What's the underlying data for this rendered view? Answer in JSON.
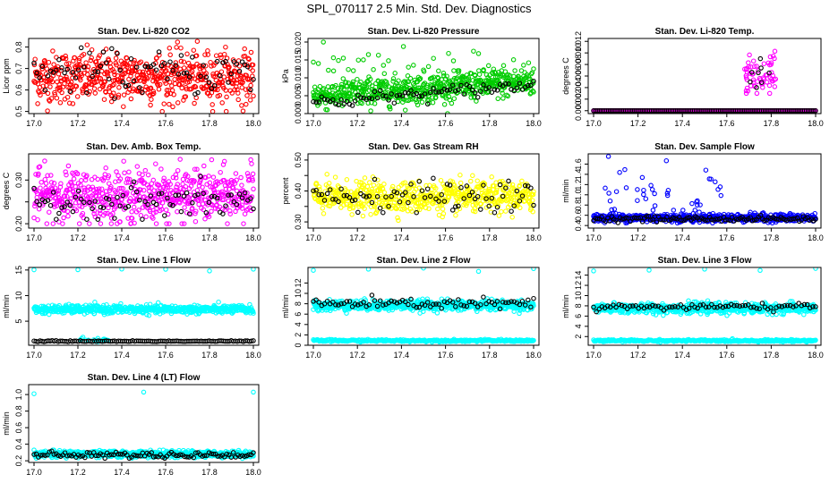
{
  "page": {
    "title": "SPL_070117  2.5 Min. Std. Dev. Diagnostics"
  },
  "chart_data": [
    {
      "type": "scatter",
      "title": "Stan. Dev. Li-820 CO2",
      "ylabel": "Licor ppm",
      "xlabel": "",
      "xlim": [
        17.0,
        18.0
      ],
      "ylim": [
        0.49,
        0.84
      ],
      "yticks": [
        0.5,
        0.6,
        0.7,
        0.8
      ],
      "xticks": [
        "17.0",
        "17.2",
        "17.4",
        "17.6",
        "17.8",
        "18.0"
      ],
      "series": [
        {
          "color": "#ff0000",
          "count": 600,
          "band": [
            0.5,
            0.84
          ],
          "center": 0.66,
          "spread": 0.06
        },
        {
          "color": "#000000",
          "count": 80,
          "band": [
            0.56,
            0.8
          ],
          "center": 0.68,
          "spread": 0.05
        }
      ]
    },
    {
      "type": "scatter",
      "title": "Stan. Dev. Li-820 Pressure",
      "ylabel": "kPa",
      "xlabel": "",
      "xlim": [
        17.0,
        18.0
      ],
      "ylim": [
        0.0,
        0.021
      ],
      "yticks": [
        0.0,
        0.005,
        0.01,
        0.015,
        0.02
      ],
      "ytick_labels": [
        "0.000",
        "0.005",
        "0.010",
        "0.015",
        "0.020"
      ],
      "xticks": [
        "17.0",
        "17.2",
        "17.4",
        "17.6",
        "17.8",
        "18.0"
      ],
      "series": [
        {
          "color": "#00cc00",
          "count": 600,
          "band": [
            0.0,
            0.012
          ],
          "center": 0.005,
          "spread": 0.002,
          "drift": 0.004
        },
        {
          "color": "#00cc00",
          "count": 45,
          "band": [
            0.009,
            0.02
          ],
          "center": 0.014,
          "spread": 0.003
        },
        {
          "color": "#000000",
          "count": 80,
          "band": [
            0.0,
            0.01
          ],
          "center": 0.003,
          "spread": 0.001,
          "drift": 0.005
        }
      ]
    },
    {
      "type": "scatter",
      "title": "Stan. Dev. Li-820 Temp.",
      "ylabel": "degrees C",
      "xlabel": "",
      "xlim": [
        17.0,
        18.0
      ],
      "ylim": [
        -0.0005,
        0.0125
      ],
      "yticks": [
        0.0,
        0.002,
        0.004,
        0.006,
        0.008,
        0.01,
        0.012
      ],
      "ytick_labels": [
        "0.000",
        "0.002",
        "0.004",
        "0.006",
        "0.008",
        "0.010",
        "0.012"
      ],
      "xticks": [
        "17.0",
        "17.2",
        "17.4",
        "17.6",
        "17.8",
        "18.0"
      ],
      "series": [
        {
          "color": "#ff00ff",
          "count": 300,
          "band": [
            0.0,
            0.0
          ],
          "center": 0.0,
          "spread": 0.0
        },
        {
          "color": "#ff00ff",
          "count": 60,
          "band": [
            0.003,
            0.0125
          ],
          "center": 0.006,
          "spread": 0.002,
          "xwin": [
            17.68,
            17.82
          ]
        },
        {
          "color": "#000000",
          "count": 120,
          "band": [
            0.0,
            0.0
          ],
          "center": 0.0,
          "spread": 0.0
        },
        {
          "color": "#000000",
          "count": 8,
          "band": [
            0.004,
            0.009
          ],
          "center": 0.006,
          "spread": 0.0015,
          "xwin": [
            17.7,
            17.8
          ]
        }
      ]
    },
    {
      "type": "scatter",
      "title": "Stan. Dev. Amb. Box Temp.",
      "ylabel": "degrees C",
      "xlabel": "",
      "xlim": [
        17.0,
        18.0
      ],
      "ylim": [
        0.19,
        0.36
      ],
      "yticks": [
        0.2,
        0.25,
        0.3
      ],
      "ytick_labels": [
        "0.20",
        "",
        "0.30"
      ],
      "xticks": [
        "17.0",
        "17.2",
        "17.4",
        "17.6",
        "17.8",
        "18.0"
      ],
      "series": [
        {
          "color": "#ff00ff",
          "count": 600,
          "band": [
            0.2,
            0.36
          ],
          "center": 0.265,
          "spread": 0.03
        },
        {
          "color": "#000000",
          "count": 80,
          "band": [
            0.21,
            0.32
          ],
          "center": 0.25,
          "spread": 0.02
        }
      ]
    },
    {
      "type": "scatter",
      "title": "Stan. Dev. Gas Stream RH",
      "ylabel": "percent",
      "xlabel": "",
      "xlim": [
        17.0,
        18.0
      ],
      "ylim": [
        0.28,
        0.52
      ],
      "yticks": [
        0.3,
        0.35,
        0.4,
        0.45,
        0.5
      ],
      "ytick_labels": [
        "0.30",
        "",
        "0.40",
        "",
        "0.50"
      ],
      "xticks": [
        "17.0",
        "17.2",
        "17.4",
        "17.6",
        "17.8",
        "18.0"
      ],
      "series": [
        {
          "color": "#ffff00",
          "count": 600,
          "band": [
            0.3,
            0.52
          ],
          "center": 0.38,
          "spread": 0.025
        },
        {
          "color": "#000000",
          "count": 80,
          "band": [
            0.33,
            0.46
          ],
          "center": 0.385,
          "spread": 0.025
        }
      ]
    },
    {
      "type": "scatter",
      "title": "Stan. Dev. Sample Flow",
      "ylabel": "ml/min",
      "xlabel": "",
      "xlim": [
        17.0,
        18.0
      ],
      "ylim": [
        0.35,
        1.8
      ],
      "yticks": [
        0.4,
        0.6,
        0.8,
        1.0,
        1.2,
        1.4,
        1.6
      ],
      "ytick_labels": [
        "0.4",
        "0.6",
        "0.8",
        "1.0",
        "1.2",
        "1.4",
        "1.6"
      ],
      "xticks": [
        "17.0",
        "17.2",
        "17.4",
        "17.6",
        "17.8",
        "18.0"
      ],
      "series": [
        {
          "color": "#0000ff",
          "count": 600,
          "band": [
            0.45,
            0.7
          ],
          "center": 0.55,
          "spread": 0.04
        },
        {
          "color": "#0000ff",
          "count": 40,
          "band": [
            0.7,
            1.75
          ],
          "center": 1.05,
          "spread": 0.25,
          "xwin": [
            17.05,
            17.6
          ]
        },
        {
          "color": "#000000",
          "count": 110,
          "band": [
            0.45,
            0.62
          ],
          "center": 0.53,
          "spread": 0.025
        }
      ]
    },
    {
      "type": "scatter",
      "title": "Stan. Dev. Line 1 Flow",
      "ylabel": "ml/min",
      "xlabel": "",
      "xlim": [
        17.0,
        18.0
      ],
      "ylim": [
        0.3,
        15.5
      ],
      "yticks": [
        5,
        10,
        15
      ],
      "ytick_labels": [
        "5",
        "10",
        "15"
      ],
      "xticks": [
        "17.0",
        "17.2",
        "17.4",
        "17.6",
        "17.8",
        "18.0"
      ],
      "series": [
        {
          "color": "#00ffff",
          "count": 600,
          "band": [
            6.0,
            9.0
          ],
          "center": 7.3,
          "spread": 0.4
        },
        {
          "color": "#00ffff",
          "count": 6,
          "band": [
            14.5,
            15.3
          ],
          "center": 15.0,
          "spread": 0.2
        },
        {
          "color": "#00ffff",
          "count": 20,
          "band": [
            1.0,
            2.0
          ],
          "center": 1.4,
          "spread": 0.2,
          "xwin": [
            17.2,
            17.35
          ]
        },
        {
          "color": "#000000",
          "count": 110,
          "band": [
            0.9,
            1.3
          ],
          "center": 1.1,
          "spread": 0.05
        }
      ]
    },
    {
      "type": "scatter",
      "title": "Stan. Dev. Line 2 Flow",
      "ylabel": "ml/min",
      "xlabel": "",
      "xlim": [
        17.0,
        18.0
      ],
      "ylim": [
        0.0,
        15.0
      ],
      "yticks": [
        0,
        2,
        4,
        6,
        8,
        10,
        12
      ],
      "ytick_labels": [
        "0",
        "2",
        "4",
        "6",
        "8",
        "10",
        "12"
      ],
      "xticks": [
        "17.0",
        "17.2",
        "17.4",
        "17.6",
        "17.8",
        "18.0"
      ],
      "series": [
        {
          "color": "#00ffff",
          "count": 600,
          "band": [
            6.0,
            9.5
          ],
          "center": 7.7,
          "spread": 0.5
        },
        {
          "color": "#00ffff",
          "count": 5,
          "band": [
            14.0,
            15.0
          ],
          "center": 14.5,
          "spread": 0.2
        },
        {
          "color": "#00ffff",
          "count": 300,
          "band": [
            0.6,
            1.3
          ],
          "center": 0.9,
          "spread": 0.1
        },
        {
          "color": "#000000",
          "count": 80,
          "band": [
            6.0,
            9.8
          ],
          "center": 8.0,
          "spread": 0.5
        }
      ]
    },
    {
      "type": "scatter",
      "title": "Stan. Dev. Line 3 Flow",
      "ylabel": "ml/min",
      "xlabel": "",
      "xlim": [
        17.0,
        18.0
      ],
      "ylim": [
        0.3,
        15.5
      ],
      "yticks": [
        2,
        4,
        6,
        8,
        10,
        12,
        14
      ],
      "ytick_labels": [
        "2",
        "4",
        "6",
        "8",
        "10",
        "12",
        "14"
      ],
      "xticks": [
        "17.0",
        "17.2",
        "17.4",
        "17.6",
        "17.8",
        "18.0"
      ],
      "series": [
        {
          "color": "#00ffff",
          "count": 600,
          "band": [
            5.5,
            9.0
          ],
          "center": 7.5,
          "spread": 0.5
        },
        {
          "color": "#00ffff",
          "count": 5,
          "band": [
            14.5,
            15.3
          ],
          "center": 15.0,
          "spread": 0.2
        },
        {
          "color": "#00ffff",
          "count": 300,
          "band": [
            0.8,
            1.6
          ],
          "center": 1.2,
          "spread": 0.1
        },
        {
          "color": "#000000",
          "count": 80,
          "band": [
            6.5,
            9.0
          ],
          "center": 7.8,
          "spread": 0.35
        }
      ]
    },
    {
      "type": "scatter",
      "title": "Stan. Dev. Line 4 (LT) Flow",
      "ylabel": "ml/min",
      "xlabel": "",
      "xlim": [
        17.0,
        18.0
      ],
      "ylim": [
        0.18,
        1.12
      ],
      "yticks": [
        0.2,
        0.4,
        0.6,
        0.8,
        1.0
      ],
      "ytick_labels": [
        "0.2",
        "0.4",
        "0.6",
        "0.8",
        "1.0"
      ],
      "xticks": [
        "17.0",
        "17.2",
        "17.4",
        "17.6",
        "17.8",
        "18.0"
      ],
      "series": [
        {
          "color": "#00ffff",
          "count": 600,
          "band": [
            0.22,
            0.33
          ],
          "center": 0.28,
          "spread": 0.02
        },
        {
          "color": "#00ffff",
          "count": 3,
          "band": [
            0.95,
            1.1
          ],
          "center": 1.0,
          "spread": 0.05
        },
        {
          "color": "#000000",
          "count": 100,
          "band": [
            0.23,
            0.32
          ],
          "center": 0.27,
          "spread": 0.02
        }
      ]
    }
  ]
}
